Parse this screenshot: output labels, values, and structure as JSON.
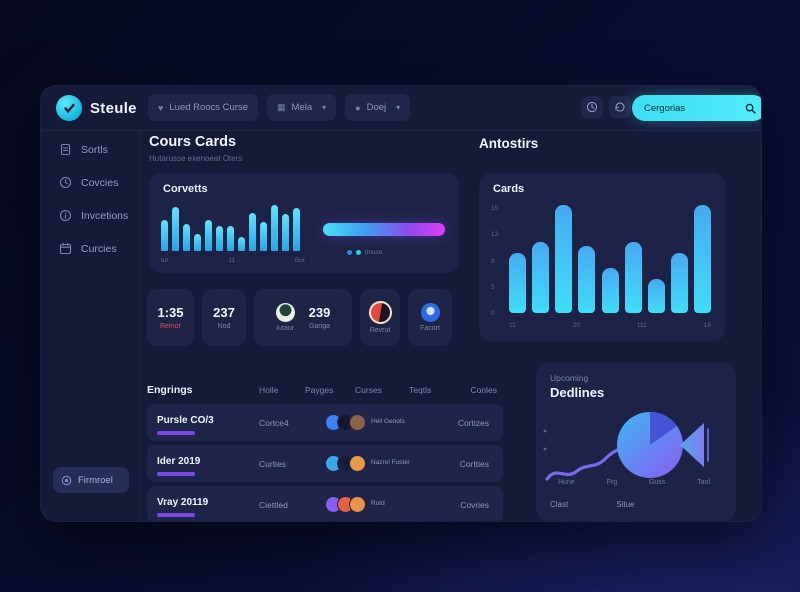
{
  "topbar": {
    "logo_text": "Steule",
    "buttons": [
      {
        "label": "Lued Roocs Curse"
      },
      {
        "label": "Mela"
      },
      {
        "label": "Doej"
      }
    ],
    "search": {
      "placeholder": "Cergorias"
    }
  },
  "sidebar": {
    "items": [
      {
        "label": "Sortls",
        "icon": "document-icon"
      },
      {
        "label": "Covcies",
        "icon": "clock-icon"
      },
      {
        "label": "Invcetions",
        "icon": "info-icon"
      },
      {
        "label": "Curcies",
        "icon": "calendar-icon"
      }
    ],
    "bottom": {
      "label": "Firmroel",
      "icon": "badge-icon"
    }
  },
  "main": {
    "title": "Cours Cards",
    "subtitle": "Hutarusse exenoeat Oters",
    "activity": {
      "title": "Corvetts",
      "legend_label": "tinuse"
    },
    "stats": [
      {
        "value": "1:35",
        "label": "Remor",
        "label_color": "#e84b5f"
      },
      {
        "value": "237",
        "label": "Nod"
      },
      {
        "avatar_label": "Iutaur",
        "value": "239",
        "value_label": "Ganga"
      },
      {
        "label": "Revrut"
      },
      {
        "label": "Facort"
      }
    ],
    "table": {
      "name_header": "Engrings",
      "headers": [
        "Holle",
        "Payges",
        "Curses",
        "Teqtls",
        "Conles"
      ],
      "rows": [
        {
          "name": "Pursle CO/3",
          "col2": "Cortce4",
          "people": "Hell Genots",
          "col4": "Cortizes",
          "av1": "#3b82f6",
          "av2": "#14172f",
          "av3": "#8a6248"
        },
        {
          "name": "Ider 2019",
          "col2": "Curties",
          "people": "Nazrel Fuster",
          "col4": "Cortties",
          "av1": "#3aa7e8",
          "av2": "#181c38",
          "av3": "#e89a4a"
        },
        {
          "name": "Vray 20119",
          "col2": "Ciettled",
          "people": "Rutd",
          "col4": "Covries",
          "av1": "#8b5cf6",
          "av2": "#e8603f",
          "av3": "#e8944a"
        }
      ]
    }
  },
  "right": {
    "title": "Antostirs",
    "cards_chart_title": "Cards",
    "deadlines": {
      "eyebrow": "Upcoming",
      "title": "Dedlines",
      "footer_labels": [
        "Clast",
        "Situe"
      ]
    }
  },
  "colors": {
    "accent_cyan": "#3ddff2",
    "accent_purple": "#7b46e8",
    "accent_magenta": "#e03df2",
    "status_red": "#e84b5f",
    "panel_bg": "#151a39",
    "card_bg": "#1d2346"
  },
  "chart_data": [
    {
      "type": "bar",
      "title": "Corvetts",
      "values": [
        55,
        78,
        48,
        30,
        56,
        45,
        44,
        25,
        68,
        52,
        82,
        66,
        76
      ],
      "x_tick_labels": [
        "tur",
        "11",
        "Bur"
      ],
      "ylim": [
        0,
        100
      ],
      "legend": [
        "tinuse"
      ],
      "note": "small activity bars, cyan gradient, no gridlines"
    },
    {
      "type": "bar",
      "title": "Cards",
      "values": [
        8,
        9.5,
        14.5,
        9,
        6,
        9.5,
        4.5,
        8,
        14.5
      ],
      "y_tick_labels": [
        "15",
        "13",
        "8",
        "5",
        "0"
      ],
      "x_tick_labels": [
        "11",
        "20",
        "111",
        "18"
      ],
      "ylim": [
        0,
        15
      ],
      "note": "rounded capsule bars, blue-cyan gradient, no gridlines"
    },
    {
      "type": "pie",
      "title": "Upcoming Dedlines",
      "slices": [
        {
          "label": "wedge",
          "value": 15,
          "color": "#4653d4"
        },
        {
          "label": "body",
          "value": 85,
          "color": "blue-to-purple gradient"
        }
      ],
      "x_tick_labels": [
        "Hune",
        "Frg",
        "Guss",
        "Taol"
      ],
      "footer_labels": [
        "Clast",
        "Situe"
      ],
      "note": "decorative wavy purple line flowing into gradient circle with funnel shape on right"
    }
  ]
}
